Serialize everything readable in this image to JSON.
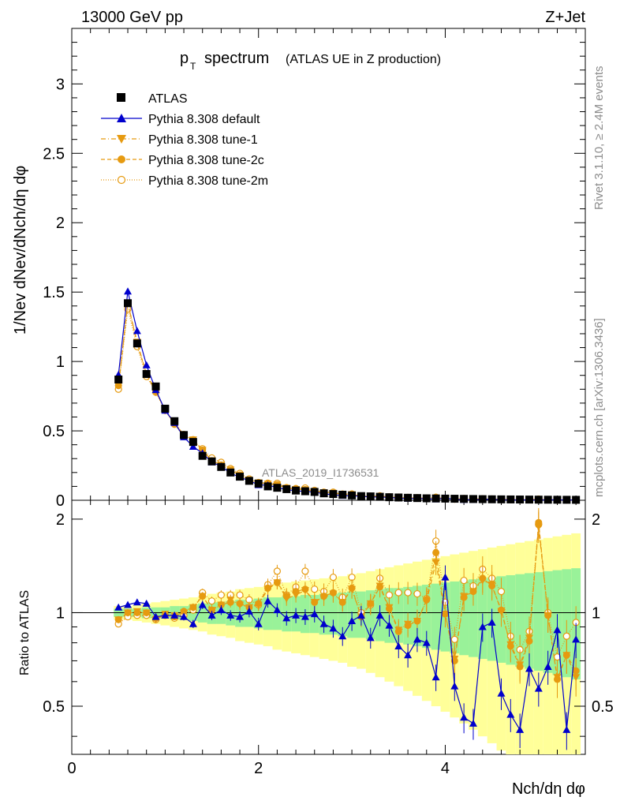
{
  "header": {
    "energy": "13000 GeV pp",
    "process": "Z+Jet"
  },
  "side": {
    "rivet": "Rivet 3.1.10, ≥ 2.4M events",
    "source": "mcplots.cern.ch [arXiv:1306.3436]"
  },
  "chart_data": {
    "type": "scatter",
    "title": "pT spectrum (ATLAS UE in Z production)",
    "title_main": "p",
    "title_sub": "T",
    "title_rest": "spectrum",
    "title_paren": "(ATLAS UE in Z production)",
    "analysis_label": "ATLAS_2019_I1736531",
    "xlabel": "Nch/dη dφ",
    "ylabel": "1/Nev dNev/dNch/dη dφ",
    "ratio_ylabel": "Ratio to ATLAS",
    "xlim": [
      0,
      5.5
    ],
    "ylim": [
      0,
      3.4
    ],
    "ratio_ylim": [
      0.35,
      2.3
    ],
    "x_ticks": [
      "0",
      "2",
      "4"
    ],
    "y_ticks": [
      "0",
      "0.5",
      "1",
      "1.5",
      "2",
      "2.5",
      "3"
    ],
    "ratio_ticks": [
      "0.5",
      "1",
      "2"
    ],
    "legend": [
      "ATLAS",
      "Pythia 8.308 default",
      "Pythia 8.308 tune-1",
      "Pythia 8.308 tune-2c",
      "Pythia 8.308 tune-2m"
    ],
    "colors": {
      "data": "#000000",
      "default": "#0000cc",
      "tunes": "#e69a10",
      "band_inner": "#99f299",
      "band_outer": "#ffff99"
    },
    "x": [
      0.5,
      0.6,
      0.7,
      0.8,
      0.9,
      1.0,
      1.1,
      1.2,
      1.3,
      1.4,
      1.5,
      1.6,
      1.7,
      1.8,
      1.9,
      2.0,
      2.1,
      2.2,
      2.3,
      2.4,
      2.5,
      2.6,
      2.7,
      2.8,
      2.9,
      3.0,
      3.1,
      3.2,
      3.3,
      3.4,
      3.5,
      3.6,
      3.7,
      3.8,
      3.9,
      4.0,
      4.1,
      4.2,
      4.3,
      4.4,
      4.5,
      4.6,
      4.7,
      4.8,
      4.9,
      5.0,
      5.1,
      5.2,
      5.3,
      5.4
    ],
    "atlas": [
      0.87,
      1.42,
      1.13,
      0.91,
      0.82,
      0.66,
      0.57,
      0.47,
      0.42,
      0.32,
      0.28,
      0.24,
      0.2,
      0.17,
      0.14,
      0.12,
      0.1,
      0.09,
      0.08,
      0.07,
      0.065,
      0.06,
      0.05,
      0.045,
      0.04,
      0.035,
      0.03,
      0.028,
      0.025,
      0.022,
      0.02,
      0.018,
      0.016,
      0.014,
      0.013,
      0.012,
      0.011,
      0.01,
      0.009,
      0.008,
      0.007,
      0.0065,
      0.006,
      0.0055,
      0.005,
      0.0045,
      0.004,
      0.0038,
      0.0035,
      0.0032
    ],
    "ratio_default": [
      1.04,
      1.06,
      1.08,
      1.07,
      0.97,
      0.98,
      0.98,
      0.97,
      0.92,
      1.06,
      0.98,
      1.02,
      0.98,
      0.97,
      1.01,
      0.92,
      1.09,
      1.02,
      0.96,
      0.98,
      0.97,
      0.99,
      0.92,
      0.89,
      0.84,
      0.94,
      0.98,
      0.83,
      0.98,
      0.91,
      0.78,
      0.73,
      0.82,
      0.8,
      0.62,
      1.3,
      0.58,
      0.46,
      0.44,
      0.9,
      0.93,
      0.55,
      0.47,
      0.42,
      0.66,
      0.57,
      0.67,
      0.88,
      0.42,
      0.82
    ],
    "ratio_tune1": [
      0.95,
      1.0,
      1.01,
      1.0,
      0.95,
      0.99,
      0.98,
      1.0,
      1.04,
      1.13,
      1.02,
      1.06,
      1.1,
      1.06,
      1.04,
      1.06,
      1.19,
      1.25,
      1.11,
      1.14,
      1.18,
      1.08,
      1.12,
      1.15,
      1.08,
      1.19,
      0.97,
      1.07,
      1.22,
      1.04,
      0.88,
      0.92,
      0.94,
      1.09,
      1.45,
      0.99,
      0.71,
      1.13,
      1.17,
      1.27,
      1.23,
      1.01,
      0.79,
      0.68,
      0.83,
      1.89,
      0.98,
      0.62,
      0.73,
      0.62
    ],
    "ratio_tune2c": [
      0.95,
      1.0,
      1.0,
      1.0,
      0.96,
      0.98,
      0.97,
      1.01,
      1.04,
      1.13,
      1.02,
      1.06,
      1.08,
      1.07,
      1.04,
      1.07,
      1.2,
      1.25,
      1.13,
      1.17,
      1.19,
      1.08,
      1.13,
      1.16,
      1.08,
      1.2,
      0.97,
      1.07,
      1.21,
      1.03,
      0.87,
      0.91,
      0.94,
      1.1,
      1.56,
      0.99,
      0.7,
      1.12,
      1.17,
      1.29,
      1.22,
      1.02,
      0.78,
      0.67,
      0.81,
      1.95,
      0.98,
      0.61,
      0.73,
      0.65
    ],
    "ratio_tune2m": [
      0.92,
      0.97,
      0.98,
      0.98,
      0.95,
      0.98,
      0.96,
      0.98,
      1.02,
      1.16,
      1.09,
      1.14,
      1.14,
      1.14,
      1.1,
      1.06,
      1.23,
      1.36,
      1.14,
      1.21,
      1.36,
      1.19,
      1.17,
      1.3,
      1.12,
      1.3,
      1.0,
      1.06,
      1.29,
      1.14,
      1.16,
      1.16,
      1.15,
      1.11,
      1.7,
      1.08,
      0.82,
      1.27,
      1.22,
      1.38,
      1.29,
      1.17,
      0.84,
      0.76,
      0.87,
      1.92,
      1.0,
      0.72,
      0.84,
      0.93
    ],
    "band_inner_half": [
      0.03,
      0.03,
      0.03,
      0.04,
      0.04,
      0.04,
      0.05,
      0.05,
      0.06,
      0.07,
      0.08,
      0.08,
      0.09,
      0.1,
      0.1,
      0.11,
      0.12,
      0.12,
      0.13,
      0.13,
      0.14,
      0.14,
      0.15,
      0.15,
      0.16,
      0.17,
      0.17,
      0.18,
      0.19,
      0.2,
      0.2,
      0.21,
      0.22,
      0.23,
      0.24,
      0.25,
      0.26,
      0.27,
      0.28,
      0.29,
      0.3,
      0.31,
      0.32,
      0.33,
      0.34,
      0.35,
      0.36,
      0.37,
      0.38,
      0.39
    ],
    "band_outer_half": [
      0.05,
      0.05,
      0.06,
      0.07,
      0.08,
      0.09,
      0.1,
      0.11,
      0.12,
      0.13,
      0.15,
      0.16,
      0.17,
      0.19,
      0.2,
      0.21,
      0.22,
      0.24,
      0.25,
      0.26,
      0.27,
      0.28,
      0.29,
      0.3,
      0.31,
      0.33,
      0.34,
      0.36,
      0.38,
      0.4,
      0.42,
      0.44,
      0.46,
      0.48,
      0.5,
      0.52,
      0.54,
      0.56,
      0.58,
      0.6,
      0.62,
      0.64,
      0.66,
      0.68,
      0.7,
      0.72,
      0.74,
      0.76,
      0.78,
      0.8
    ]
  }
}
